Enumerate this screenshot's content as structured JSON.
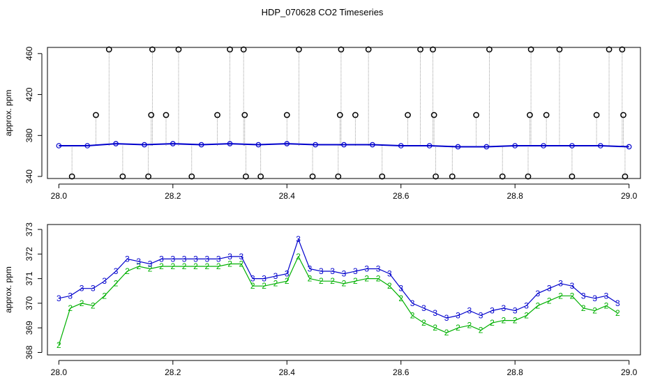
{
  "title": "HDP_070628  CO2 Timeseries",
  "colors": {
    "series2": "#00b000",
    "series3": "#0000cc",
    "outlier": "#000000",
    "connector": "#888888",
    "cyan": "#00cccc",
    "axis": "#000000"
  },
  "chart_data": [
    {
      "type": "line",
      "title": "",
      "xlabel": "",
      "ylabel": "approx. ppm",
      "xlim": [
        27.98,
        29.02
      ],
      "ylim": [
        338,
        466
      ],
      "x_ticks": [
        28.0,
        28.2,
        28.4,
        28.6,
        28.8,
        29.0
      ],
      "x_tick_labels": [
        "28.0",
        "28.2",
        "28.4",
        "28.6",
        "28.8",
        "29.0"
      ],
      "y_ticks": [
        340,
        380,
        420,
        460
      ],
      "y_tick_labels": [
        "340",
        "380",
        "420",
        "460"
      ],
      "grid": false,
      "series": [
        {
          "marker": "o",
          "x": [
            28.0,
            28.05,
            28.1,
            28.15,
            28.2,
            28.25,
            28.3,
            28.35,
            28.4,
            28.45,
            28.5,
            28.55,
            28.6,
            28.65,
            28.7,
            28.75,
            28.8,
            28.85,
            28.9,
            28.95,
            29.0
          ],
          "y": [
            370,
            370,
            372,
            371,
            372,
            371,
            372,
            371,
            372,
            371,
            371,
            371,
            370,
            370,
            369,
            369,
            370,
            370,
            370,
            370,
            369
          ]
        }
      ],
      "outliers": [
        {
          "x": 28.023,
          "y": 340
        },
        {
          "x": 28.065,
          "y": 400
        },
        {
          "x": 28.088,
          "y": 464
        },
        {
          "x": 28.112,
          "y": 340
        },
        {
          "x": 28.157,
          "y": 340
        },
        {
          "x": 28.162,
          "y": 400
        },
        {
          "x": 28.164,
          "y": 464
        },
        {
          "x": 28.188,
          "y": 400
        },
        {
          "x": 28.21,
          "y": 464
        },
        {
          "x": 28.233,
          "y": 340
        },
        {
          "x": 28.278,
          "y": 400
        },
        {
          "x": 28.3,
          "y": 464
        },
        {
          "x": 28.324,
          "y": 464
        },
        {
          "x": 28.326,
          "y": 400
        },
        {
          "x": 28.328,
          "y": 340
        },
        {
          "x": 28.354,
          "y": 340
        },
        {
          "x": 28.4,
          "y": 400
        },
        {
          "x": 28.421,
          "y": 464
        },
        {
          "x": 28.445,
          "y": 340
        },
        {
          "x": 28.49,
          "y": 340
        },
        {
          "x": 28.493,
          "y": 400
        },
        {
          "x": 28.495,
          "y": 464
        },
        {
          "x": 28.52,
          "y": 400
        },
        {
          "x": 28.543,
          "y": 464
        },
        {
          "x": 28.567,
          "y": 340
        },
        {
          "x": 28.612,
          "y": 400
        },
        {
          "x": 28.634,
          "y": 464
        },
        {
          "x": 28.656,
          "y": 464
        },
        {
          "x": 28.658,
          "y": 400
        },
        {
          "x": 28.661,
          "y": 340
        },
        {
          "x": 28.69,
          "y": 340
        },
        {
          "x": 28.732,
          "y": 400
        },
        {
          "x": 28.755,
          "y": 464
        },
        {
          "x": 28.778,
          "y": 340
        },
        {
          "x": 28.823,
          "y": 340
        },
        {
          "x": 28.826,
          "y": 400
        },
        {
          "x": 28.828,
          "y": 464
        },
        {
          "x": 28.855,
          "y": 400
        },
        {
          "x": 28.878,
          "y": 464
        },
        {
          "x": 28.9,
          "y": 340
        },
        {
          "x": 28.943,
          "y": 400
        },
        {
          "x": 28.965,
          "y": 464
        },
        {
          "x": 28.988,
          "y": 464
        },
        {
          "x": 28.99,
          "y": 400
        },
        {
          "x": 28.993,
          "y": 340
        }
      ]
    },
    {
      "type": "line",
      "title": "",
      "xlabel": "",
      "ylabel": "approx. ppm",
      "xlim": [
        27.98,
        29.02
      ],
      "ylim": [
        367.9,
        373.2
      ],
      "x_ticks": [
        28.0,
        28.2,
        28.4,
        28.6,
        28.8,
        29.0
      ],
      "x_tick_labels": [
        "28.0",
        "28.2",
        "28.4",
        "28.6",
        "28.8",
        "29.0"
      ],
      "y_ticks": [
        368,
        369,
        370,
        371,
        372,
        373
      ],
      "y_tick_labels": [
        "368",
        "369",
        "370",
        "371",
        "372",
        "373"
      ],
      "grid": false,
      "x": [
        28.0,
        28.02,
        28.04,
        28.06,
        28.08,
        28.1,
        28.12,
        28.14,
        28.16,
        28.18,
        28.2,
        28.22,
        28.24,
        28.26,
        28.28,
        28.3,
        28.32,
        28.34,
        28.36,
        28.38,
        28.4,
        28.42,
        28.44,
        28.46,
        28.48,
        28.5,
        28.52,
        28.54,
        28.56,
        28.58,
        28.6,
        28.62,
        28.64,
        28.66,
        28.68,
        28.7,
        28.72,
        28.74,
        28.76,
        28.78,
        28.8,
        28.82,
        28.84,
        28.86,
        28.88,
        28.9,
        28.92,
        28.94,
        28.96,
        28.98
      ],
      "series": [
        {
          "name": "3",
          "values": [
            370.2,
            370.3,
            370.6,
            370.6,
            370.9,
            371.3,
            371.8,
            371.7,
            371.6,
            371.8,
            371.8,
            371.8,
            371.8,
            371.8,
            371.8,
            371.9,
            371.9,
            371.0,
            371.0,
            371.1,
            371.2,
            372.6,
            371.4,
            371.3,
            371.3,
            371.2,
            371.3,
            371.4,
            371.4,
            371.2,
            370.6,
            370.0,
            369.8,
            369.6,
            369.4,
            369.5,
            369.7,
            369.5,
            369.7,
            369.8,
            369.7,
            369.9,
            370.4,
            370.6,
            370.8,
            370.7,
            370.3,
            370.2,
            370.3,
            370.0
          ]
        },
        {
          "name": "2",
          "values": [
            368.3,
            369.8,
            370.0,
            369.9,
            370.3,
            370.8,
            371.3,
            371.5,
            371.4,
            371.5,
            371.5,
            371.5,
            371.5,
            371.5,
            371.5,
            371.6,
            371.6,
            370.7,
            370.7,
            370.8,
            370.9,
            371.9,
            371.0,
            370.9,
            370.9,
            370.8,
            370.9,
            371.0,
            371.0,
            370.7,
            370.2,
            369.5,
            369.2,
            369.0,
            368.8,
            369.0,
            369.1,
            368.9,
            369.2,
            369.3,
            369.3,
            369.5,
            369.9,
            370.1,
            370.3,
            370.3,
            369.8,
            369.7,
            369.9,
            369.6
          ]
        }
      ]
    }
  ]
}
